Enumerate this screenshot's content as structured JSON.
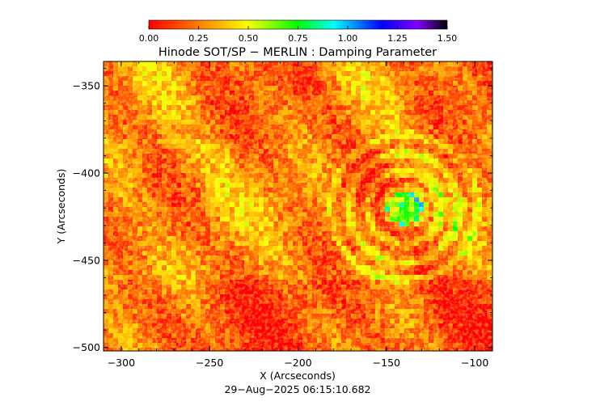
{
  "chart_data": {
    "type": "heatmap",
    "title": "Hinode SOT/SP − MERLIN : Damping Parameter",
    "xlabel": "X (Arcseconds)",
    "ylabel": "Y (Arcseconds)",
    "timestamp": "29−Aug−2025 06:15:10.682",
    "xlim": [
      -310,
      -90
    ],
    "ylim": [
      -502,
      -336
    ],
    "x_ticks": [
      {
        "value": -300,
        "label": "−300"
      },
      {
        "value": -250,
        "label": "−250"
      },
      {
        "value": -200,
        "label": "−200"
      },
      {
        "value": -150,
        "label": "−150"
      },
      {
        "value": -100,
        "label": "−100"
      }
    ],
    "y_ticks": [
      {
        "value": -350,
        "label": "−350"
      },
      {
        "value": -400,
        "label": "−400"
      },
      {
        "value": -450,
        "label": "−450"
      },
      {
        "value": -500,
        "label": "−500"
      }
    ],
    "colorbar": {
      "range": [
        0.0,
        1.5
      ],
      "ticks": [
        {
          "value": 0.0,
          "label": "0.00"
        },
        {
          "value": 0.25,
          "label": "0.25"
        },
        {
          "value": 0.5,
          "label": "0.50"
        },
        {
          "value": 0.75,
          "label": "0.75"
        },
        {
          "value": 1.0,
          "label": "1.00"
        },
        {
          "value": 1.25,
          "label": "1.25"
        },
        {
          "value": 1.5,
          "label": "1.50"
        }
      ],
      "colormap": [
        "#ff0000",
        "#ff8000",
        "#ffff00",
        "#00ff00",
        "#00ffff",
        "#0000ff",
        "#8000ff",
        "#000000"
      ]
    },
    "grid": false,
    "legend": "colorbar-top"
  }
}
